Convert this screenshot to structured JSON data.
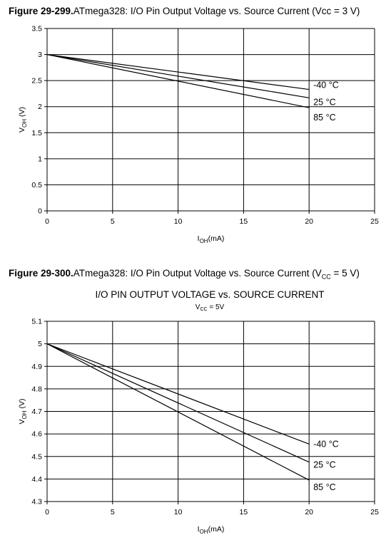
{
  "charts": [
    {
      "caption_number": "Figure 29-299.",
      "caption_text": "ATmega328: I/O Pin Output Voltage vs. Source Current (Vcc = 3 V)",
      "caption_sub": "",
      "caption_tail": ""
    },
    {
      "caption_number": "Figure 29-300.",
      "caption_text": "ATmega328: I/O Pin Output Voltage vs. Source Current (V",
      "caption_sub": "CC",
      "caption_tail": " = 5 V)"
    }
  ],
  "chart_data": [
    {
      "type": "line",
      "title": "",
      "subtitle": "",
      "xlabel": "I",
      "xlabel_sub": "OH",
      "xlabel_unit": "(mA)",
      "ylabel": "V",
      "ylabel_sub": "OH",
      "ylabel_unit": " (V)",
      "xlim": [
        0,
        25
      ],
      "ylim": [
        0,
        3.5
      ],
      "xticks": [
        "0",
        "5",
        "10",
        "15",
        "20",
        "25"
      ],
      "yticks": [
        "0",
        "0.5",
        "1",
        "1.5",
        "2",
        "2.5",
        "3",
        "3.5"
      ],
      "grid": true,
      "series": [
        {
          "name": "-40 °C",
          "x": [
            0,
            20
          ],
          "y": [
            3.0,
            2.33
          ]
        },
        {
          "name": "25 °C",
          "x": [
            0,
            20
          ],
          "y": [
            3.0,
            2.17
          ]
        },
        {
          "name": "85 °C",
          "x": [
            0,
            20
          ],
          "y": [
            3.0,
            1.98
          ]
        }
      ]
    },
    {
      "type": "line",
      "title": "I/O PIN OUTPUT VOLTAGE vs. SOURCE CURRENT",
      "subtitle": "V",
      "subtitle_sub": "CC",
      "subtitle_tail": " = 5V",
      "xlabel": "I",
      "xlabel_sub": "OH",
      "xlabel_unit": "(mA)",
      "ylabel": "V",
      "ylabel_sub": "OH",
      "ylabel_unit": " (V)",
      "xlim": [
        0,
        25
      ],
      "ylim": [
        4.3,
        5.1
      ],
      "xticks": [
        "0",
        "5",
        "10",
        "15",
        "20",
        "25"
      ],
      "yticks": [
        "4.3",
        "4.4",
        "4.5",
        "4.6",
        "4.7",
        "4.8",
        "4.9",
        "5",
        "5.1"
      ],
      "grid": true,
      "series": [
        {
          "name": "-40 °C",
          "x": [
            0,
            20
          ],
          "y": [
            5.0,
            4.555
          ]
        },
        {
          "name": "25 °C",
          "x": [
            0,
            20
          ],
          "y": [
            5.0,
            4.475
          ]
        },
        {
          "name": "85 °C",
          "x": [
            0,
            20
          ],
          "y": [
            5.0,
            4.395
          ]
        }
      ]
    }
  ]
}
